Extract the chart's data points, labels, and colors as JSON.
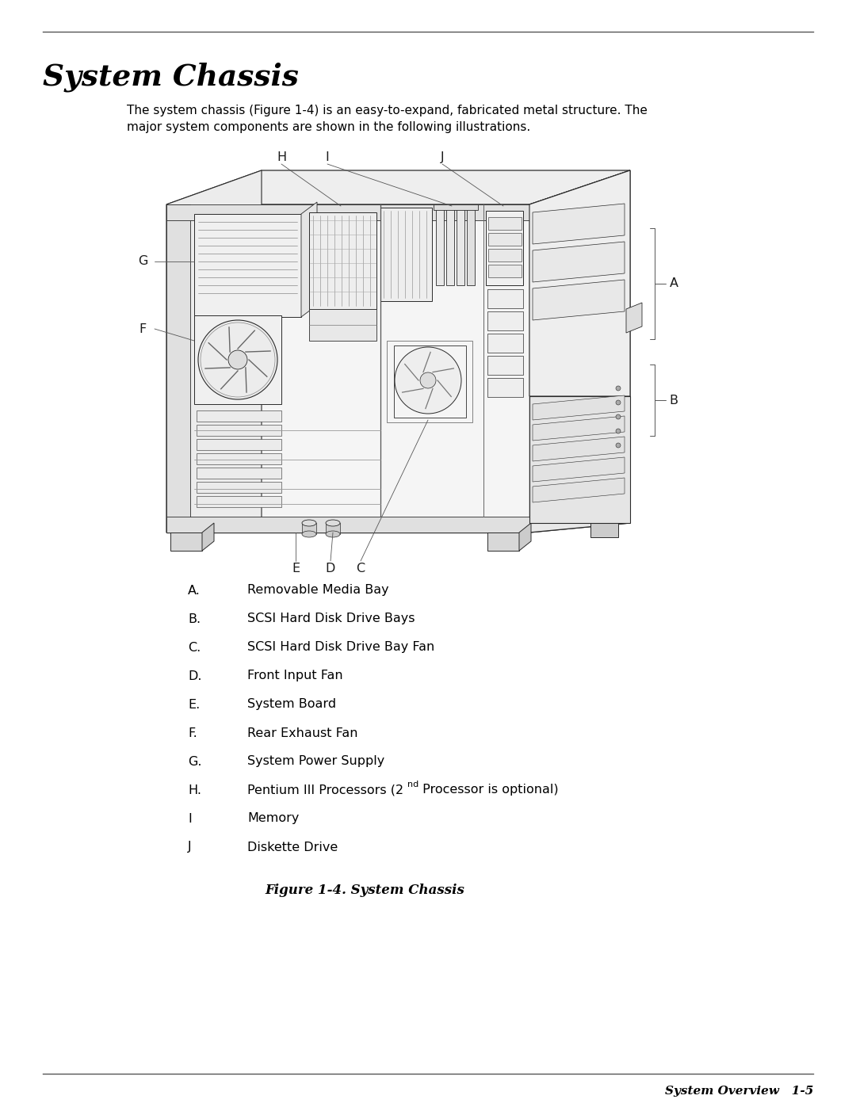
{
  "title": "System Chassis",
  "body_line1": "The system chassis (Figure 1-4) is an easy-to-expand, fabricated metal structure. The",
  "body_line2": "major system components are shown in the following illustrations.",
  "figure_caption": "Figure 1-4. System Chassis",
  "footer_text": "System Overview   1-5",
  "bg_color": "#ffffff",
  "text_color": "#000000",
  "items": [
    {
      "label": "A.",
      "desc": "Removable Media Bay"
    },
    {
      "label": "B.",
      "desc": "SCSI Hard Disk Drive Bays"
    },
    {
      "label": "C.",
      "desc": "SCSI Hard Disk Drive Bay Fan"
    },
    {
      "label": "D.",
      "desc": "Front Input Fan"
    },
    {
      "label": "E.",
      "desc": "System Board"
    },
    {
      "label": "F.",
      "desc": "Rear Exhaust Fan"
    },
    {
      "label": "G.",
      "desc": "System Power Supply"
    },
    {
      "label": "H.",
      "desc_plain": "Pentium III Processors (2",
      "desc_super": "nd",
      "desc_end": " Processor is optional)"
    },
    {
      "label": "I",
      "desc": "Memory"
    },
    {
      "label": "J",
      "desc": "Diskette Drive"
    }
  ]
}
